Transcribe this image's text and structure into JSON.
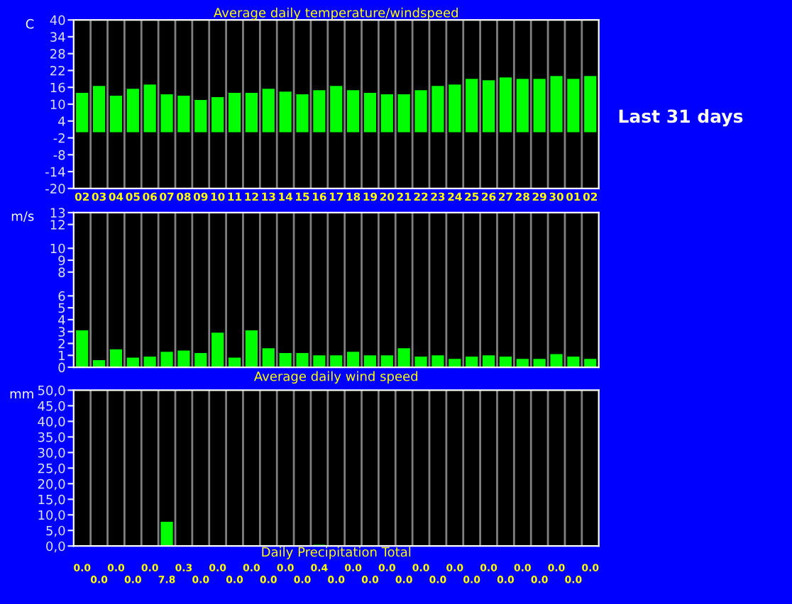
{
  "chart_data": [
    {
      "type": "bar",
      "title": "Average daily temperature/windspeed",
      "ylabel": "C",
      "categories": [
        "02",
        "03",
        "04",
        "05",
        "06",
        "07",
        "08",
        "09",
        "10",
        "11",
        "12",
        "13",
        "14",
        "15",
        "16",
        "17",
        "18",
        "19",
        "20",
        "21",
        "22",
        "23",
        "24",
        "25",
        "26",
        "27",
        "28",
        "29",
        "30",
        "01",
        "02"
      ],
      "series": [
        {
          "color": "#00ff00",
          "values": [
            14,
            16.5,
            13,
            15.5,
            17,
            13.5,
            13,
            11.5,
            12.5,
            14,
            14,
            15.5,
            14.5,
            13.5,
            15,
            16.5,
            15,
            14,
            13.5,
            13.5,
            15,
            16.5,
            17,
            19,
            18.5,
            19.5,
            19,
            19,
            20,
            19,
            20
          ]
        }
      ],
      "ylim": [
        -20,
        40
      ],
      "yticks": [
        -20,
        -14,
        -8,
        -2,
        4,
        10,
        16,
        22,
        28,
        34,
        40
      ],
      "grid": "x",
      "annotations": [
        "Last 31 days"
      ]
    },
    {
      "type": "bar",
      "xlabel": "Average daily wind speed",
      "ylabel": "m/s",
      "categories": [
        null,
        null,
        null,
        null,
        null,
        null,
        null,
        null,
        null,
        null,
        null,
        null,
        null,
        null,
        null,
        null,
        null,
        null,
        null,
        null,
        null,
        null,
        null,
        null,
        null,
        null,
        null,
        null,
        null,
        null,
        null
      ],
      "series": [
        {
          "color": "#00ff00",
          "values": [
            3.1,
            0.6,
            1.5,
            0.8,
            0.9,
            1.3,
            1.4,
            1.2,
            2.9,
            0.8,
            3.1,
            1.6,
            1.2,
            1.2,
            1.0,
            1.0,
            1.3,
            1.0,
            1.0,
            1.6,
            0.9,
            1.0,
            0.7,
            0.9,
            1.0,
            0.9,
            0.7,
            0.7,
            1.1,
            0.9,
            0.7
          ]
        }
      ],
      "ylim": [
        0,
        13
      ],
      "yticks": [
        0,
        1,
        2,
        3,
        4,
        5,
        6,
        8,
        9,
        10,
        12,
        13
      ],
      "grid": "x",
      "tick_labels": "y"
    },
    {
      "type": "bar",
      "xlabel": "Daily Precipitation Total",
      "ylabel": "mm",
      "categories": [
        null,
        null,
        null,
        null,
        null,
        null,
        null,
        null,
        null,
        null,
        null,
        null,
        null,
        null,
        null,
        null,
        null,
        null,
        null,
        null,
        null,
        null,
        null,
        null,
        null,
        null,
        null,
        null,
        null,
        null,
        null
      ],
      "series": [
        {
          "color": "#00ff00",
          "values": [
            0,
            0,
            0,
            0,
            0,
            7.8,
            0.3,
            0,
            0,
            0,
            0,
            0,
            0,
            0,
            0.4,
            0,
            0,
            0,
            0,
            0,
            0,
            0,
            0,
            0,
            0,
            0,
            0,
            0,
            0,
            0,
            0
          ],
          "value_labels": [
            "0.0",
            "0.0",
            "0.0",
            "0.0",
            "0.0",
            "7.8",
            "0.3",
            "0.0",
            "0.0",
            "0.0",
            "0.0",
            "0.0",
            "0.0",
            "0.0",
            "0.4",
            "0.0",
            "0.0",
            "0.0",
            "0.0",
            "0.0",
            "0.0",
            "0.0",
            "0.0",
            "0.0",
            "0.0",
            "0.0",
            "0.0",
            "0.0",
            "0.0",
            "0.0",
            "0.0"
          ]
        }
      ],
      "ylim": [
        0,
        50
      ],
      "yticks": [
        {
          "value": 0,
          "label": "0,0"
        },
        {
          "value": 5,
          "label": "5,0"
        },
        {
          "value": 10,
          "label": "10,0"
        },
        {
          "value": 15,
          "label": "15,0"
        },
        {
          "value": 20,
          "label": "20,0"
        },
        {
          "value": 25,
          "label": "25,0"
        },
        {
          "value": 30,
          "label": "30,0"
        },
        {
          "value": 35,
          "label": "35,0"
        },
        {
          "value": 40,
          "label": "40,0"
        },
        {
          "value": 45,
          "label": "45,0"
        },
        {
          "value": 50,
          "label": "50,0"
        }
      ],
      "grid": "x",
      "tick_labels": "y"
    }
  ]
}
